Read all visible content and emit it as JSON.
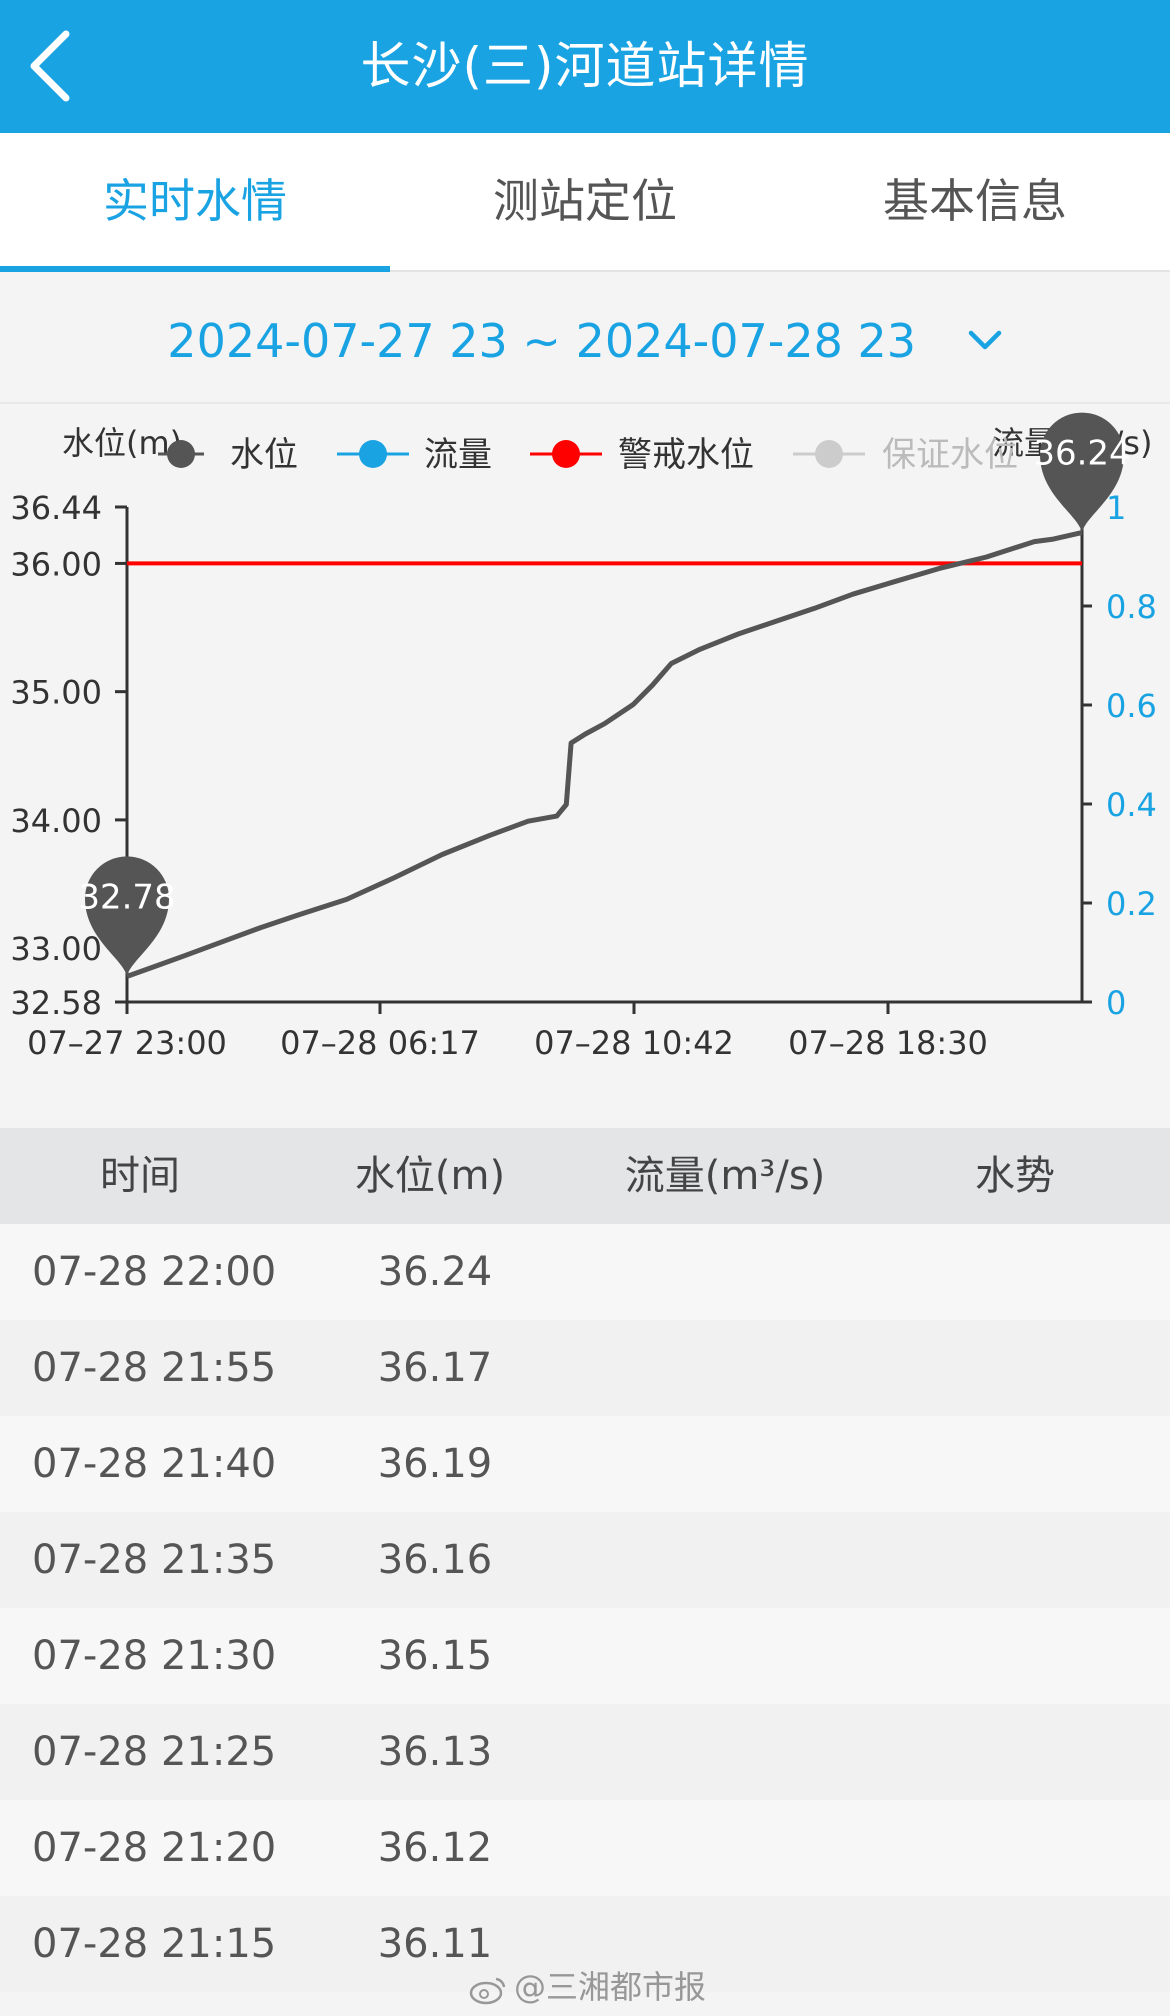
{
  "header": {
    "title": "长沙(三)河道站详情"
  },
  "tabs": [
    {
      "label": "实时水情",
      "active": true
    },
    {
      "label": "测站定位",
      "active": false
    },
    {
      "label": "基本信息",
      "active": false
    }
  ],
  "date_range": {
    "label": "2024-07-27 23 ~ 2024-07-28 23"
  },
  "colors": {
    "accent": "#1aa3e3",
    "water_level_line": "#555555",
    "flow_line": "#1aa3e3",
    "warning_line": "#ff0000",
    "guarantee_line": "#cccccc"
  },
  "chart_data": {
    "type": "line",
    "left_axis_label": "水位(m)",
    "right_axis_label": "流量(m³/s)",
    "legend": [
      "水位",
      "流量",
      "警戒水位",
      "保证水位"
    ],
    "legend_placement": "top",
    "yticks_left": [
      "36.44",
      "36.00",
      "35.00",
      "34.00",
      "33.00",
      "32.58"
    ],
    "yticks_right": [
      "1",
      "0.8",
      "0.6",
      "0.4",
      "0.2",
      "0"
    ],
    "xticks": [
      "07–27 23:00",
      "07–28 06:17",
      "07–28 10:42",
      "07–28 18:30"
    ],
    "ylim_left": [
      32.58,
      36.44
    ],
    "ylim_right": [
      0,
      1
    ],
    "warning_level": 36.0,
    "min_marker": "32.78",
    "max_marker": "36.24",
    "series": [
      {
        "name": "水位",
        "points": [
          [
            0,
            32.78
          ],
          [
            3,
            32.86
          ],
          [
            6,
            32.94
          ],
          [
            10,
            33.05
          ],
          [
            14,
            33.16
          ],
          [
            18,
            33.26
          ],
          [
            23,
            33.38
          ],
          [
            28,
            33.55
          ],
          [
            33,
            33.73
          ],
          [
            38,
            33.88
          ],
          [
            42,
            33.99
          ],
          [
            45,
            34.03
          ],
          [
            46,
            34.12
          ],
          [
            46.5,
            34.6
          ],
          [
            48,
            34.67
          ],
          [
            50,
            34.75
          ],
          [
            53,
            34.9
          ],
          [
            55,
            35.05
          ],
          [
            57,
            35.22
          ],
          [
            60,
            35.33
          ],
          [
            64,
            35.45
          ],
          [
            68,
            35.55
          ],
          [
            72,
            35.65
          ],
          [
            76,
            35.76
          ],
          [
            80,
            35.85
          ],
          [
            85,
            35.96
          ],
          [
            90,
            36.05
          ],
          [
            95,
            36.17
          ],
          [
            97,
            36.19
          ],
          [
            100,
            36.24
          ]
        ]
      },
      {
        "name": "流量",
        "points": []
      },
      {
        "name": "警戒水位",
        "value": 36.0
      },
      {
        "name": "保证水位",
        "value": null
      }
    ]
  },
  "table": {
    "columns": [
      "时间",
      "水位(m)",
      "流量(m³/s)",
      "水势"
    ],
    "rows": [
      {
        "time": "07-28 22:00",
        "level": "36.24"
      },
      {
        "time": "07-28 21:55",
        "level": "36.17"
      },
      {
        "time": "07-28 21:40",
        "level": "36.19"
      },
      {
        "time": "07-28 21:35",
        "level": "36.16"
      },
      {
        "time": "07-28 21:30",
        "level": "36.15"
      },
      {
        "time": "07-28 21:25",
        "level": "36.13"
      },
      {
        "time": "07-28 21:20",
        "level": "36.12"
      },
      {
        "time": "07-28 21:15",
        "level": "36.11"
      }
    ]
  },
  "watermark": {
    "text": "@三湘都市报"
  }
}
